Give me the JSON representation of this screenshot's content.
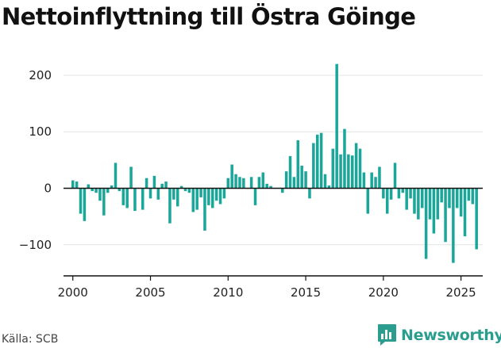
{
  "title": "Nettoinflyttning till Östra Göinge",
  "source": "Källa: SCB",
  "logo_text": "Newsworthy",
  "colors": {
    "bar": "#1aa79a",
    "axis": "#111111",
    "grid": "#e3e3e3",
    "logo": "#2a9d8f"
  },
  "chart_data": {
    "type": "bar",
    "title": "Nettoinflyttning till Östra Göinge",
    "xlabel": "",
    "ylabel": "",
    "x_ticks": [
      2000,
      2005,
      2010,
      2015,
      2020,
      2025
    ],
    "y_ticks": [
      -100,
      0,
      100,
      200
    ],
    "y_tick_labels": [
      "−100",
      "0",
      "100",
      "200"
    ],
    "xlim": [
      1999.4,
      2026.4
    ],
    "ylim": [
      -155,
      235
    ],
    "grid": true,
    "frequency": "quarterly",
    "start": 2000.0,
    "values": [
      14,
      12,
      -45,
      -58,
      7,
      -5,
      -8,
      -22,
      -48,
      -8,
      5,
      45,
      -5,
      -30,
      -35,
      38,
      -40,
      0,
      -38,
      18,
      -18,
      22,
      -20,
      8,
      12,
      -62,
      -20,
      -32,
      4,
      -5,
      -8,
      -42,
      -38,
      -16,
      -75,
      -30,
      -35,
      -22,
      -28,
      -18,
      18,
      42,
      25,
      20,
      18,
      0,
      20,
      -30,
      20,
      28,
      8,
      4,
      0,
      0,
      -8,
      30,
      57,
      20,
      85,
      40,
      30,
      -18,
      80,
      95,
      98,
      25,
      5,
      70,
      220,
      60,
      105,
      60,
      58,
      80,
      70,
      28,
      -45,
      28,
      20,
      38,
      -18,
      -45,
      -20,
      45,
      -18,
      -8,
      -38,
      -18,
      -45,
      -55,
      -35,
      -125,
      -55,
      -80,
      -55,
      -25,
      -95,
      -35,
      -132,
      -35,
      -50,
      -85,
      -22,
      -28,
      -108
    ]
  }
}
